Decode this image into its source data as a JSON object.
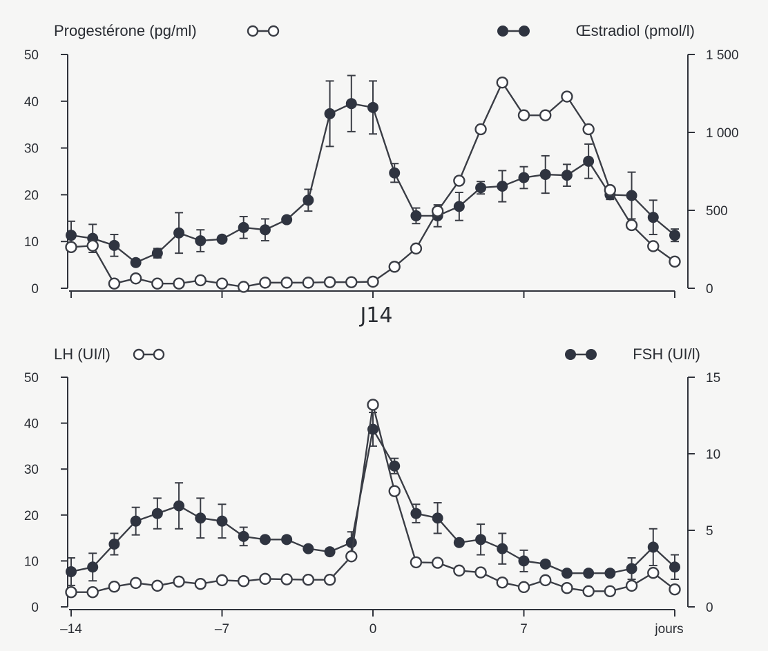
{
  "chart_data": [
    {
      "type": "line",
      "center_label": "J14",
      "x": [
        -14,
        -13,
        -12,
        -11,
        -10,
        -9,
        -8,
        -7,
        -6,
        -5,
        -4,
        -3,
        -2,
        -1,
        0,
        1,
        2,
        3,
        4,
        5,
        6,
        7,
        8,
        9,
        10,
        11,
        12,
        13,
        14
      ],
      "xlim": [
        -14,
        14
      ],
      "ylim_left": [
        0,
        50
      ],
      "ylim_right": [
        0,
        1500
      ],
      "yticks_left": [
        "0",
        "10",
        "20",
        "30",
        "40",
        "50"
      ],
      "yticks_right": [
        "0",
        "500",
        "1 000",
        "1 500"
      ],
      "series": [
        {
          "name": "Progestérone (pg/ml)",
          "axis": "left",
          "marker": "open",
          "values": [
            8.8,
            9.1,
            1.0,
            2.1,
            1.0,
            1.0,
            1.7,
            1.0,
            0.3,
            1.2,
            1.2,
            1.2,
            1.3,
            1.3,
            1.4,
            4.6,
            8.5,
            16.5,
            23.0,
            34.0,
            44.0,
            37.0,
            37.0,
            41.0,
            34.0,
            21.0,
            13.5,
            9.0,
            5.7
          ]
        },
        {
          "name": "Œstradiol (pmol/l)",
          "axis": "right",
          "marker": "filled",
          "values": [
            340,
            320,
            275,
            165,
            225,
            355,
            305,
            315,
            390,
            375,
            440,
            565,
            1120,
            1185,
            1160,
            740,
            465,
            465,
            525,
            645,
            655,
            710,
            730,
            725,
            815,
            600,
            595,
            455,
            340
          ],
          "errors": [
            90,
            90,
            70,
            20,
            30,
            130,
            70,
            20,
            70,
            70,
            20,
            70,
            210,
            180,
            170,
            60,
            50,
            70,
            90,
            40,
            100,
            70,
            120,
            70,
            110,
            30,
            150,
            110,
            40
          ]
        }
      ]
    },
    {
      "type": "line",
      "x": [
        -14,
        -13,
        -12,
        -11,
        -10,
        -9,
        -8,
        -7,
        -6,
        -5,
        -4,
        -3,
        -2,
        -1,
        0,
        1,
        2,
        3,
        4,
        5,
        6,
        7,
        8,
        9,
        10,
        11,
        12,
        13,
        14
      ],
      "xlim": [
        -14,
        14
      ],
      "xticks": [
        "–14",
        "–7",
        "0",
        "7",
        "jours"
      ],
      "ylim_left": [
        0,
        50
      ],
      "ylim_right": [
        0,
        15
      ],
      "yticks_left": [
        "0",
        "10",
        "20",
        "30",
        "40",
        "50"
      ],
      "yticks_right": [
        "0",
        "5",
        "10",
        "15"
      ],
      "series": [
        {
          "name": "LH (UI/l)",
          "axis": "left",
          "marker": "open",
          "values": [
            3.2,
            3.2,
            4.4,
            5.2,
            4.6,
            5.5,
            5.0,
            5.8,
            5.6,
            6.1,
            6.0,
            5.9,
            5.9,
            11.0,
            44.0,
            25.2,
            9.7,
            9.6,
            7.9,
            7.5,
            5.3,
            4.3,
            5.8,
            4.1,
            3.4,
            3.4,
            4.6,
            7.4,
            3.8
          ]
        },
        {
          "name": "FSH (UI/l)",
          "axis": "right",
          "marker": "filled",
          "values": [
            2.3,
            2.6,
            4.1,
            5.6,
            6.1,
            6.6,
            5.8,
            5.6,
            4.6,
            4.4,
            4.4,
            3.8,
            3.6,
            4.2,
            11.6,
            9.2,
            6.1,
            5.8,
            4.2,
            4.4,
            3.8,
            3.0,
            2.8,
            2.2,
            2.2,
            2.2,
            2.5,
            3.9,
            2.6
          ],
          "errors": [
            0.9,
            0.9,
            0.7,
            0.9,
            1.0,
            1.5,
            1.3,
            1.1,
            0.6,
            0.2,
            0.2,
            0.2,
            0.2,
            0.7,
            1.1,
            0.5,
            0.6,
            1.0,
            0.2,
            1.0,
            1.0,
            0.7,
            0.2,
            0.2,
            0.2,
            0.2,
            0.7,
            1.2,
            0.8
          ]
        }
      ]
    }
  ]
}
